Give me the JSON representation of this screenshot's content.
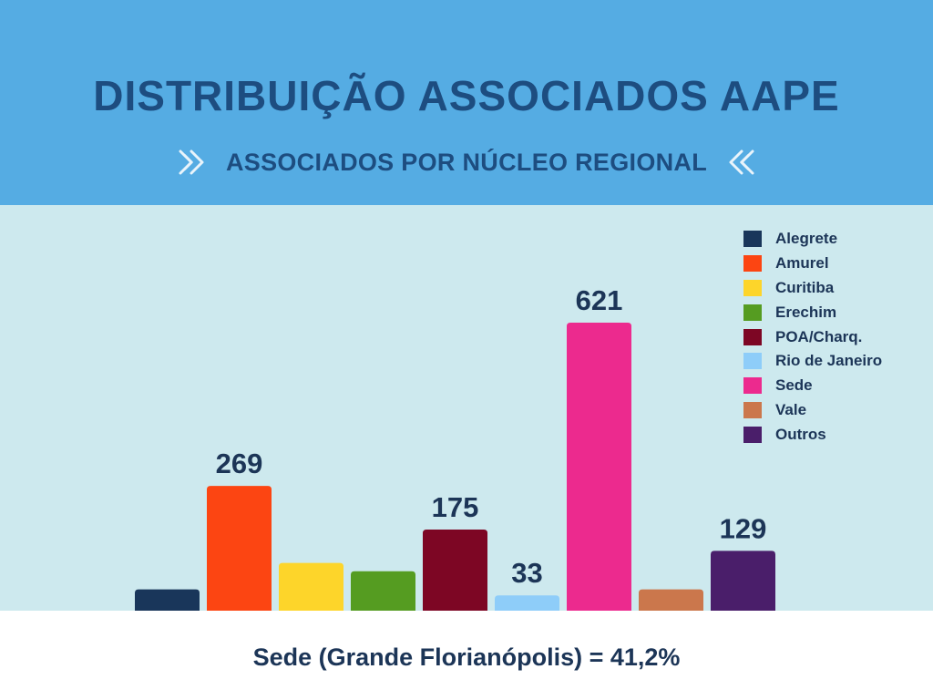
{
  "header": {
    "title": "DISTRIBUIÇÃO ASSOCIADOS AAPE",
    "subtitle": "ASSOCIADOS POR NÚCLEO REGIONAL",
    "left_icon": "double-chevron-right-icon",
    "right_icon": "double-chevron-left-icon"
  },
  "footer": {
    "note": "Sede (Grande Florianópolis) = 41,2%"
  },
  "colors": {
    "header_bg": "#55ace3",
    "chart_bg": "#cde9ee",
    "title": "#1d4d80",
    "text_dark": "#1c3557"
  },
  "chart_data": {
    "type": "bar",
    "categories": [
      "Alegrete",
      "Amurel",
      "Curitiba",
      "Erechim",
      "POA/Charq.",
      "Rio de Janeiro",
      "Sede",
      "Vale",
      "Outros"
    ],
    "values": [
      46,
      269,
      103,
      85,
      175,
      33,
      621,
      46,
      129
    ],
    "labeled": [
      false,
      true,
      false,
      false,
      true,
      true,
      true,
      false,
      true
    ],
    "colors": [
      "#19365a",
      "#fc4512",
      "#fdd52a",
      "#559c21",
      "#7d0624",
      "#8ecdf9",
      "#ec2a8e",
      "#cb774c",
      "#4a1e6a"
    ],
    "legend": {
      "placement": "top-right",
      "entries": [
        "Alegrete",
        "Amurel",
        "Curitiba",
        "Erechim",
        "POA/Charq.",
        "Rio de Janeiro",
        "Sede",
        "Vale",
        "Outros"
      ]
    },
    "title": "",
    "xlabel": "",
    "ylabel": "",
    "ylim": [
      0,
      621
    ],
    "grid": false
  }
}
